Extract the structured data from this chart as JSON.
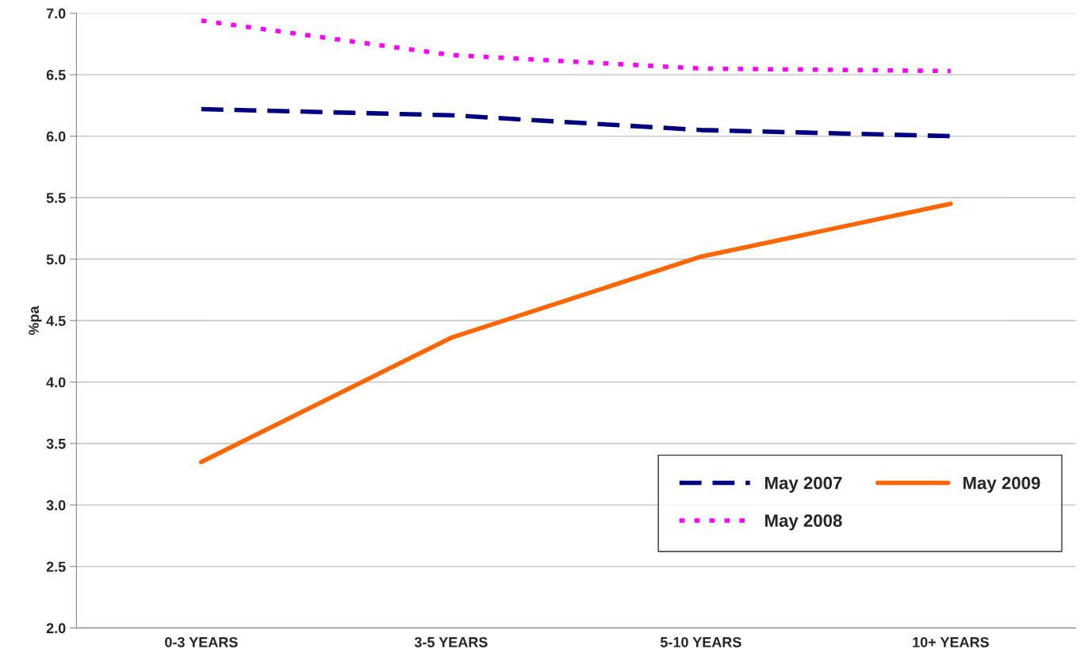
{
  "chart_data": {
    "type": "line",
    "ylabel": "%pa",
    "categories": [
      "0-3 YEARS",
      "3-5 YEARS",
      "5-10 YEARS",
      "10+ YEARS"
    ],
    "series": [
      {
        "name": "May 2007",
        "color": "#000080",
        "line_style": "dashed",
        "values": [
          6.22,
          6.17,
          6.05,
          6.0
        ]
      },
      {
        "name": "May 2008",
        "color": "#ff00ff",
        "line_style": "dotted",
        "values": [
          6.94,
          6.66,
          6.55,
          6.53
        ]
      },
      {
        "name": "May 2009",
        "color": "#ff6600",
        "line_style": "solid",
        "values": [
          3.35,
          4.36,
          5.02,
          5.45
        ]
      }
    ],
    "ylim": [
      2.0,
      7.0
    ],
    "yticks": [
      {
        "value": 2.0,
        "label": "2.0"
      },
      {
        "value": 2.5,
        "label": "2.5"
      },
      {
        "value": 3.0,
        "label": "3.0"
      },
      {
        "value": 3.5,
        "label": "3.5"
      },
      {
        "value": 4.0,
        "label": "4.0"
      },
      {
        "value": 4.5,
        "label": "4.5"
      },
      {
        "value": 5.0,
        "label": "5.0"
      },
      {
        "value": 5.5,
        "label": "5.5"
      },
      {
        "value": 6.0,
        "label": "6.0"
      },
      {
        "value": 6.5,
        "label": "6.5"
      },
      {
        "value": 7.0,
        "label": "7.0"
      }
    ],
    "grid": "y",
    "legend": "bottom right",
    "marker": "none"
  }
}
